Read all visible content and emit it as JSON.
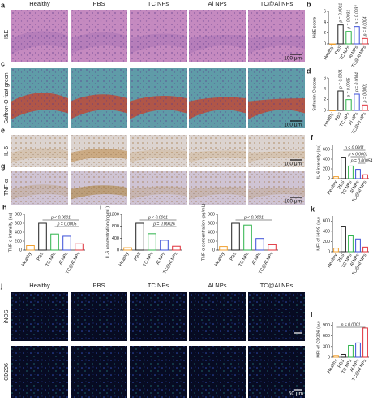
{
  "images": {
    "columns": [
      "Healthy",
      "PBS",
      "TC NPs",
      "Al NPs",
      "TC@Al NPs"
    ],
    "rows": [
      {
        "letter": "a",
        "label": "H&E",
        "scale_bar": "100 μm"
      },
      {
        "letter": "c",
        "label": "Saffron-O fast green",
        "scale_bar": "100 μm"
      },
      {
        "letter": "e",
        "label": "IL-6",
        "scale_bar": "100 μm"
      },
      {
        "letter": "g",
        "label": "TNF-α",
        "scale_bar": "100 μm"
      }
    ]
  },
  "fluorescence": {
    "letter": "j",
    "columns": [
      "Healthy",
      "PBS",
      "TC NPs",
      "Al NPs",
      "TC@Al NPs"
    ],
    "rows": [
      "iNOS",
      "CD206"
    ],
    "scale_bar": "50 μm"
  },
  "chart_data": [
    {
      "type": "bar",
      "letter": "b",
      "y_label": "H&E score",
      "categories": [
        "Healthy",
        "PBS",
        "TC NPs",
        "Al NPs",
        "TC@Al NPs"
      ],
      "values": [
        0,
        3.5,
        2.3,
        3.2,
        1.0
      ],
      "colors": [
        "#f0a030",
        "#222222",
        "#2db34a",
        "#3b4fd8",
        "#e0303a"
      ],
      "ylim": [
        0,
        6
      ],
      "yticks": [
        0,
        2,
        4,
        6
      ],
      "annotations": [
        "p = 0.0001",
        "p = 0.0031",
        "p = 0.0031",
        "p = 0.0004"
      ]
    },
    {
      "type": "bar",
      "letter": "d",
      "y_label": "Safranin-O score",
      "categories": [
        "Healthy",
        "PBS",
        "TC NPs",
        "Al NPs",
        "TC@Al NPs"
      ],
      "values": [
        0,
        3.6,
        2.0,
        3.0,
        1.0
      ],
      "colors": [
        "#f0a030",
        "#222222",
        "#2db34a",
        "#3b4fd8",
        "#e0303a"
      ],
      "ylim": [
        0,
        6
      ],
      "yticks": [
        0,
        2,
        4,
        6
      ],
      "annotations": [
        "p = 0.0001",
        "p = 0.0005",
        "p = 0.0004",
        "p = 0.0001"
      ]
    },
    {
      "type": "bar",
      "letter": "f",
      "y_label": "IL-6 intensity (au)",
      "categories": [
        "Healthy",
        "PBS",
        "TC NPs",
        "Al NPs",
        "TC@Al NPs"
      ],
      "values": [
        40,
        440,
        260,
        190,
        80
      ],
      "colors": [
        "#f0a030",
        "#222222",
        "#2db34a",
        "#3b4fd8",
        "#e0303a"
      ],
      "ylim": [
        0,
        700
      ],
      "yticks": [
        0,
        200,
        400,
        600
      ],
      "annotations": [
        "p < 0.0001",
        "p < 0.0001",
        "p = 0.00054"
      ]
    },
    {
      "type": "bar",
      "letter": "h",
      "y_label": "TNF-α intensity (au)",
      "categories": [
        "Healthy",
        "PBS",
        "TC NPs",
        "Al NPs",
        "TC@Al NPs"
      ],
      "values": [
        100,
        600,
        360,
        310,
        140
      ],
      "colors": [
        "#f0a030",
        "#222222",
        "#2db34a",
        "#3b4fd8",
        "#e0303a"
      ],
      "ylim": [
        0,
        800
      ],
      "yticks": [
        0,
        200,
        400,
        600,
        800
      ],
      "annotations": [
        "p < 0.0001",
        "p = 0.0005"
      ]
    },
    {
      "type": "bar",
      "letter": "i",
      "y_label": "IL-6 concentration (pg/mL)",
      "categories": [
        "Healthy",
        "PBS",
        "TC NPs",
        "Al NPs",
        "TC@Al NPs"
      ],
      "values": [
        80,
        900,
        550,
        330,
        130
      ],
      "colors": [
        "#f0a030",
        "#222222",
        "#2db34a",
        "#3b4fd8",
        "#e0303a"
      ],
      "ylim": [
        0,
        1200
      ],
      "yticks": [
        0,
        400,
        800,
        1200
      ],
      "annotations": [
        "p < 0.0001",
        "p = 0.00026"
      ]
    },
    {
      "type": "bar",
      "y_label": "TNF-α concentration (pg/mL)",
      "categories": [
        "Healthy",
        "PBS",
        "TC NPs",
        "Al NPs",
        "TC@Al NPs"
      ],
      "values": [
        80,
        600,
        560,
        260,
        120
      ],
      "colors": [
        "#f0a030",
        "#222222",
        "#2db34a",
        "#3b4fd8",
        "#e0303a"
      ],
      "ylim": [
        0,
        800
      ],
      "yticks": [
        0,
        200,
        400,
        600,
        800
      ],
      "annotations": [
        "p < 0.0001"
      ]
    },
    {
      "type": "bar",
      "letter": "k",
      "y_label": "MFI of iNOS (au)",
      "categories": [
        "Healthy",
        "PBS",
        "TC NPs",
        "Al NPs",
        "TC@Al NPs"
      ],
      "values": [
        70,
        500,
        310,
        250,
        90
      ],
      "colors": [
        "#f0a030",
        "#222222",
        "#2db34a",
        "#3b4fd8",
        "#e0303a"
      ],
      "ylim": [
        0,
        700
      ],
      "yticks": [
        0,
        200,
        400,
        600
      ],
      "annotations": []
    },
    {
      "type": "bar",
      "letter": "l",
      "y_label": "MFI of CD206 (au)",
      "categories": [
        "Healthy",
        "PBS",
        "TC NPs",
        "Al NPs",
        "TC@Al NPs"
      ],
      "values": [
        50,
        80,
        330,
        400,
        820
      ],
      "colors": [
        "#f0a030",
        "#222222",
        "#2db34a",
        "#3b4fd8",
        "#e0303a"
      ],
      "ylim": [
        0,
        1000
      ],
      "yticks": [
        0,
        300,
        600,
        900
      ],
      "annotations": [
        "p < 0.0001"
      ]
    }
  ]
}
